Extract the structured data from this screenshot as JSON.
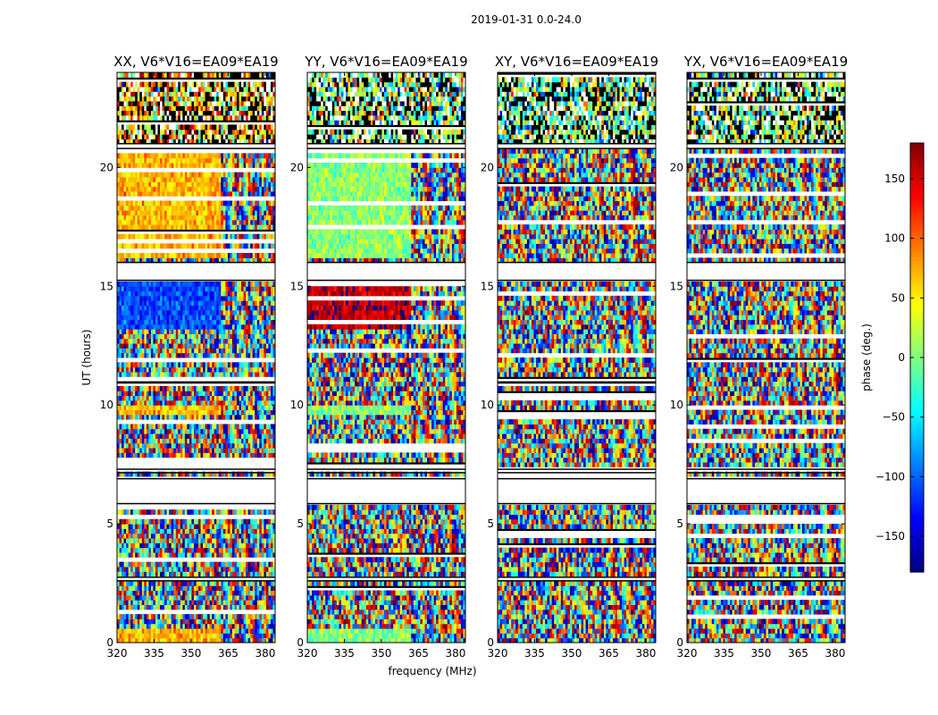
{
  "figure": {
    "suptitle": "2019-01-31 0.0-24.0",
    "xlabel": "frequency (MHz)",
    "ylabel": "UT (hours)"
  },
  "colorbar": {
    "label": "phase (deg.)",
    "range": [
      -180,
      180
    ],
    "ticks": [
      "150",
      "100",
      "50",
      "0",
      "−50",
      "−100",
      "−150"
    ],
    "tick_values": [
      150,
      100,
      50,
      0,
      -50,
      -100,
      -150
    ],
    "colormap": "jet"
  },
  "chart_data": {
    "type": "heatmap",
    "x_ticks": [
      "320",
      "335",
      "350",
      "365",
      "380"
    ],
    "x_tick_values": [
      320,
      335,
      350,
      365,
      380
    ],
    "xlim": [
      320,
      384
    ],
    "y_ticks": [
      "0",
      "5",
      "10",
      "15",
      "20"
    ],
    "y_tick_values": [
      0,
      5,
      10,
      15,
      20
    ],
    "ylim": [
      0,
      24
    ],
    "panels": [
      {
        "title": "XX, V6*V16=EA09*EA19",
        "base_phase": 70,
        "blue_band_phase": -110
      },
      {
        "title": "YY, V6*V16=EA09*EA19",
        "base_phase": 5,
        "blue_band_phase": 160
      },
      {
        "title": "XY, V6*V16=EA09*EA19",
        "base_phase": null,
        "blue_band_phase": null
      },
      {
        "title": "YX, V6*V16=EA09*EA19",
        "base_phase": null,
        "blue_band_phase": null
      }
    ],
    "flagged_ut_ranges": [
      [
        2.6,
        2.75
      ],
      [
        5.85,
        6.9
      ],
      [
        7.15,
        7.3
      ],
      [
        15.25,
        16.0
      ],
      [
        20.8,
        21.0
      ]
    ],
    "dense_flag_ut_ranges": [
      [
        21.0,
        24.0
      ]
    ]
  }
}
